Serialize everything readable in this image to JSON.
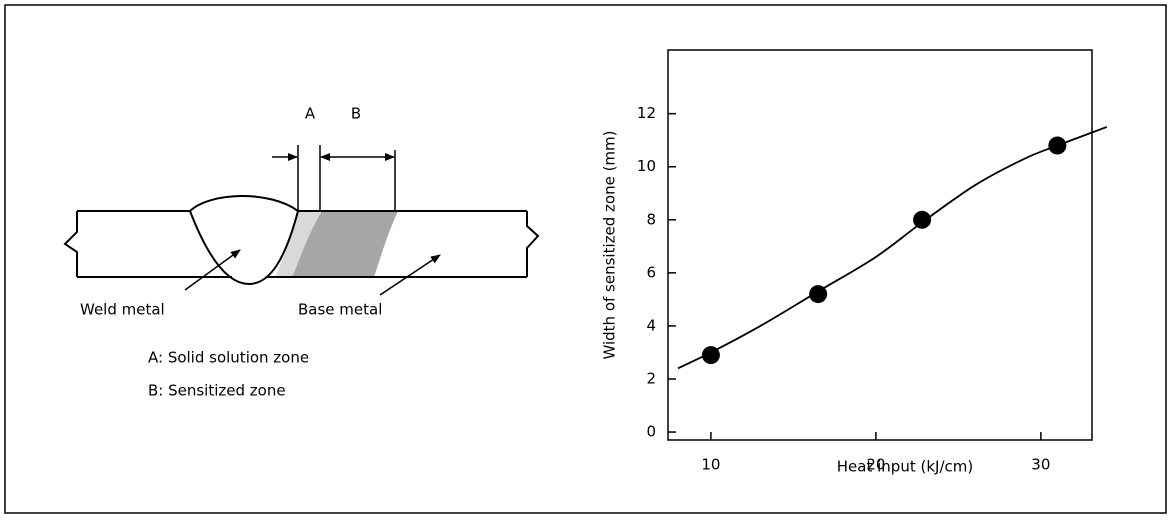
{
  "diagram": {
    "dimension_labels": [
      "A",
      "B"
    ],
    "labels": [
      "Weld metal",
      "Base metal"
    ],
    "legend": [
      "A: Solid solution zone",
      "B: Sensitized zone"
    ]
  },
  "chart_data": {
    "type": "scatter",
    "xlabel": "Heat input (kJ/cm)",
    "ylabel": "Width of sensitized zone (mm)",
    "x": [
      10,
      16.5,
      22.8,
      31
    ],
    "values": [
      2.9,
      5.2,
      8.0,
      10.8
    ],
    "color": "#000000",
    "fit": {
      "x": [
        8,
        10,
        13,
        16.5,
        20,
        22.8,
        26,
        29,
        31,
        34
      ],
      "values": [
        2.4,
        3.0,
        4.0,
        5.3,
        6.6,
        7.9,
        9.3,
        10.3,
        10.8,
        11.5
      ]
    },
    "xlim": [
      7.4,
      33.1
    ],
    "ylim": [
      -0.3,
      14.4
    ],
    "xticks": [
      10,
      20,
      30
    ],
    "yticks": [
      0,
      2,
      4,
      6,
      8,
      10,
      12
    ]
  }
}
